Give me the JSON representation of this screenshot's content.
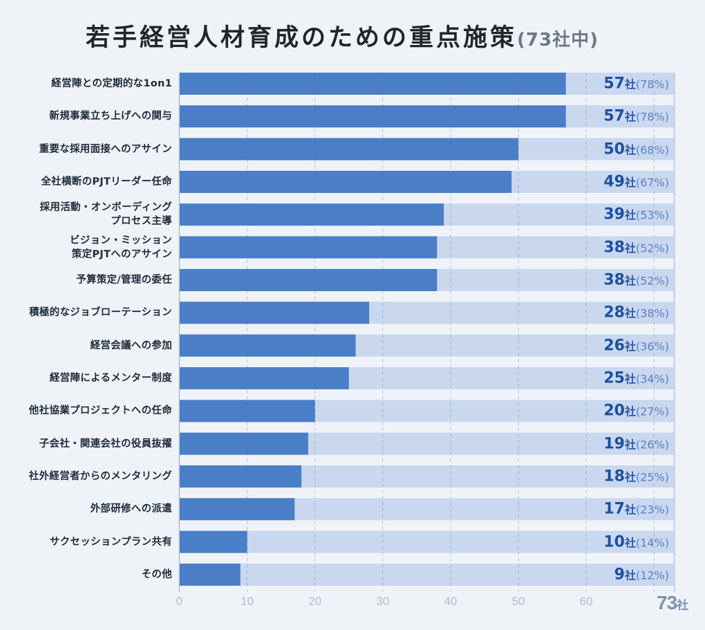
{
  "chart_data": {
    "type": "bar",
    "orientation": "horizontal",
    "title": "若手経営人材育成のための重点施策",
    "subtitle": "(73社中)",
    "categories": [
      "経営陣との定期的な1on1",
      "新規事業立ち上げへの関与",
      "重要な採用面接へのアサイン",
      "全社横断のPJTリーダー任命",
      "採用活動・オンボーディング\nプロセス主導",
      "ビジョン・ミッション\n策定PJTへのアサイン",
      "予算策定/管理の委任",
      "積極的なジョブローテーション",
      "経営会議への参加",
      "経営陣によるメンター制度",
      "他社協業プロジェクトへの任命",
      "子会社・関連会社の役員抜擢",
      "社外経営者からのメンタリング",
      "外部研修への派遣",
      "サクセッションプラン共有",
      "その他"
    ],
    "values": [
      57,
      57,
      50,
      49,
      39,
      38,
      38,
      28,
      26,
      25,
      20,
      19,
      18,
      17,
      10,
      9
    ],
    "unit": "社",
    "percent_labels": [
      "(78%)",
      "(78%)",
      "(68%)",
      "(67%)",
      "(53%)",
      "(52%)",
      "(52%)",
      "(38%)",
      "(36%)",
      "(34%)",
      "(27%)",
      "(26%)",
      "(25%)",
      "(23%)",
      "(14%)",
      "(12%)"
    ],
    "xlim": [
      0,
      73
    ],
    "xticks": [
      0,
      10,
      20,
      30,
      40,
      50,
      60,
      70
    ],
    "xtick_labels": [
      "0",
      "10",
      "20",
      "30",
      "40",
      "50",
      "60"
    ],
    "total_label": {
      "value": "73",
      "unit": "社"
    },
    "grid": true,
    "xlabel": "",
    "ylabel": "",
    "colors": {
      "bar": "#4a7ec6",
      "track": "#c9d8ef",
      "background": "#eff3f8",
      "max_line": "#bfcee2",
      "axis": "#9fb5cd"
    }
  }
}
